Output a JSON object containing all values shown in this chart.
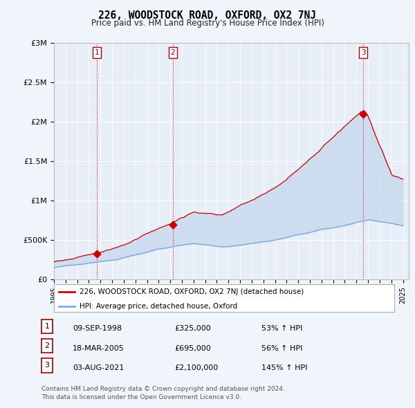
{
  "title": "226, WOODSTOCK ROAD, OXFORD, OX2 7NJ",
  "subtitle": "Price paid vs. HM Land Registry's House Price Index (HPI)",
  "ylabel_ticks": [
    "£0",
    "£500K",
    "£1M",
    "£1.5M",
    "£2M",
    "£2.5M",
    "£3M"
  ],
  "ytick_values": [
    0,
    500000,
    1000000,
    1500000,
    2000000,
    2500000,
    3000000
  ],
  "ylim": [
    0,
    3000000
  ],
  "xlim_start": 1995.0,
  "xlim_end": 2025.5,
  "purchases": [
    {
      "year": 1998.69,
      "price": 325000,
      "label": "1"
    },
    {
      "year": 2005.21,
      "price": 695000,
      "label": "2"
    },
    {
      "year": 2021.59,
      "price": 2100000,
      "label": "3"
    }
  ],
  "vline_color": "#cc0000",
  "vline_style": ":",
  "hpi_color": "#7aaddc",
  "price_color": "#cc0000",
  "fill_color": "#c8d8ee",
  "bg_color": "#f0f4fb",
  "plot_bg": "#e8eef8",
  "legend_label_price": "226, WOODSTOCK ROAD, OXFORD, OX2 7NJ (detached house)",
  "legend_label_hpi": "HPI: Average price, detached house, Oxford",
  "table_rows": [
    [
      "1",
      "09-SEP-1998",
      "£325,000",
      "53% ↑ HPI"
    ],
    [
      "2",
      "18-MAR-2005",
      "£695,000",
      "56% ↑ HPI"
    ],
    [
      "3",
      "03-AUG-2021",
      "£2,100,000",
      "145% ↑ HPI"
    ]
  ],
  "footer": "Contains HM Land Registry data © Crown copyright and database right 2024.\nThis data is licensed under the Open Government Licence v3.0.",
  "xtick_years": [
    1995,
    1996,
    1997,
    1998,
    1999,
    2000,
    2001,
    2002,
    2003,
    2004,
    2005,
    2006,
    2007,
    2008,
    2009,
    2010,
    2011,
    2012,
    2013,
    2014,
    2015,
    2016,
    2017,
    2018,
    2019,
    2020,
    2021,
    2022,
    2023,
    2024,
    2025
  ]
}
